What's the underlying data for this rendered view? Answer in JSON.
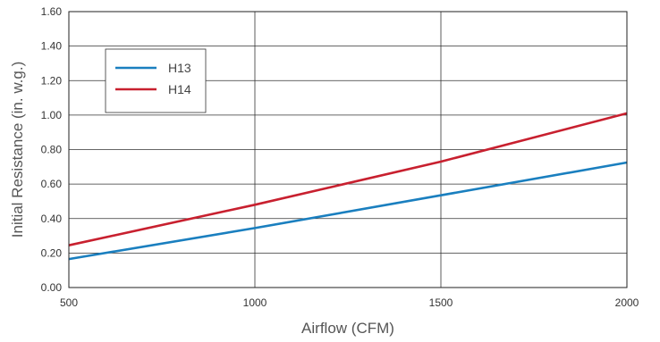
{
  "chart_data": {
    "type": "line",
    "xlabel": "Airflow (CFM)",
    "ylabel": "Initial Resistance (in. w.g.)",
    "xlim": [
      500,
      2000
    ],
    "ylim": [
      0,
      1.6
    ],
    "x_ticks": [
      500,
      1000,
      1500,
      2000
    ],
    "y_ticks": [
      0,
      0.2,
      0.4,
      0.6,
      0.8,
      1.0,
      1.2,
      1.4,
      1.6
    ],
    "x_tick_labels": [
      "500",
      "1000",
      "1500",
      "2000"
    ],
    "y_tick_labels": [
      "0.00",
      "0.20",
      "0.40",
      "0.60",
      "0.80",
      "1.00",
      "1.20",
      "1.40",
      "1.60"
    ],
    "grid": true,
    "legend_position": "top-left",
    "series": [
      {
        "name": "H13",
        "color": "#1a7fbf",
        "points": [
          [
            500,
            0.165
          ],
          [
            1000,
            0.345
          ],
          [
            1500,
            0.535
          ],
          [
            2000,
            0.725
          ]
        ]
      },
      {
        "name": "H14",
        "color": "#c8202f",
        "points": [
          [
            500,
            0.245
          ],
          [
            1000,
            0.48
          ],
          [
            1500,
            0.73
          ],
          [
            2000,
            1.01
          ]
        ]
      }
    ]
  }
}
